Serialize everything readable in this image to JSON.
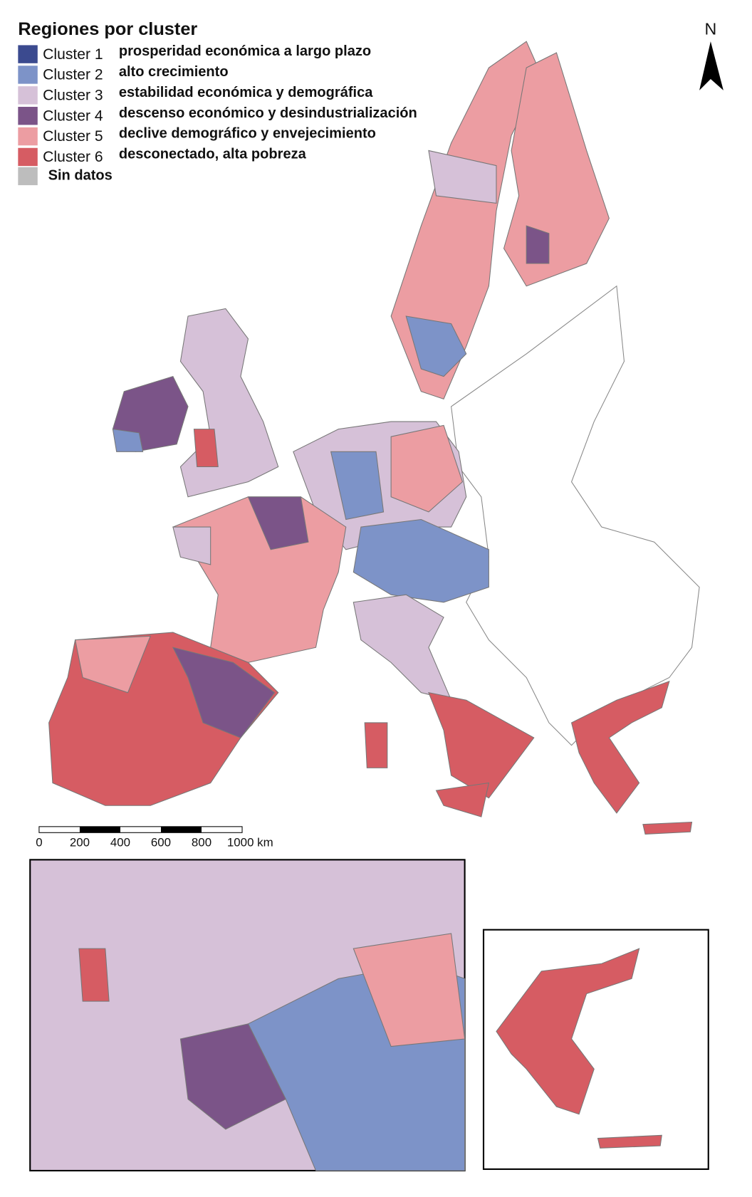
{
  "legend": {
    "title": "Regiones por cluster",
    "items": [
      {
        "label": "Cluster 1",
        "description": "prosperidad económica a largo plazo",
        "color": "#3b4a8f"
      },
      {
        "label": "Cluster 2",
        "description": "alto crecimiento",
        "color": "#7d93c8"
      },
      {
        "label": "Cluster 3",
        "description": "estabilidad económica y demográfica",
        "color": "#d6c1d8"
      },
      {
        "label": "Cluster 4",
        "description": "descenso económico y desindustrialización",
        "color": "#7b5488"
      },
      {
        "label": "Cluster 5",
        "description": "declive demográfico y envejecimiento",
        "color": "#ec9da2"
      },
      {
        "label": "Cluster 6",
        "description": "desconectado, alta pobreza",
        "color": "#d65c63"
      }
    ],
    "no_data": {
      "label": "Sin datos",
      "color": "#bdbdbd"
    }
  },
  "north": "N",
  "scale": {
    "labels": [
      "0",
      "200",
      "400",
      "600",
      "800",
      "1000 km"
    ]
  }
}
